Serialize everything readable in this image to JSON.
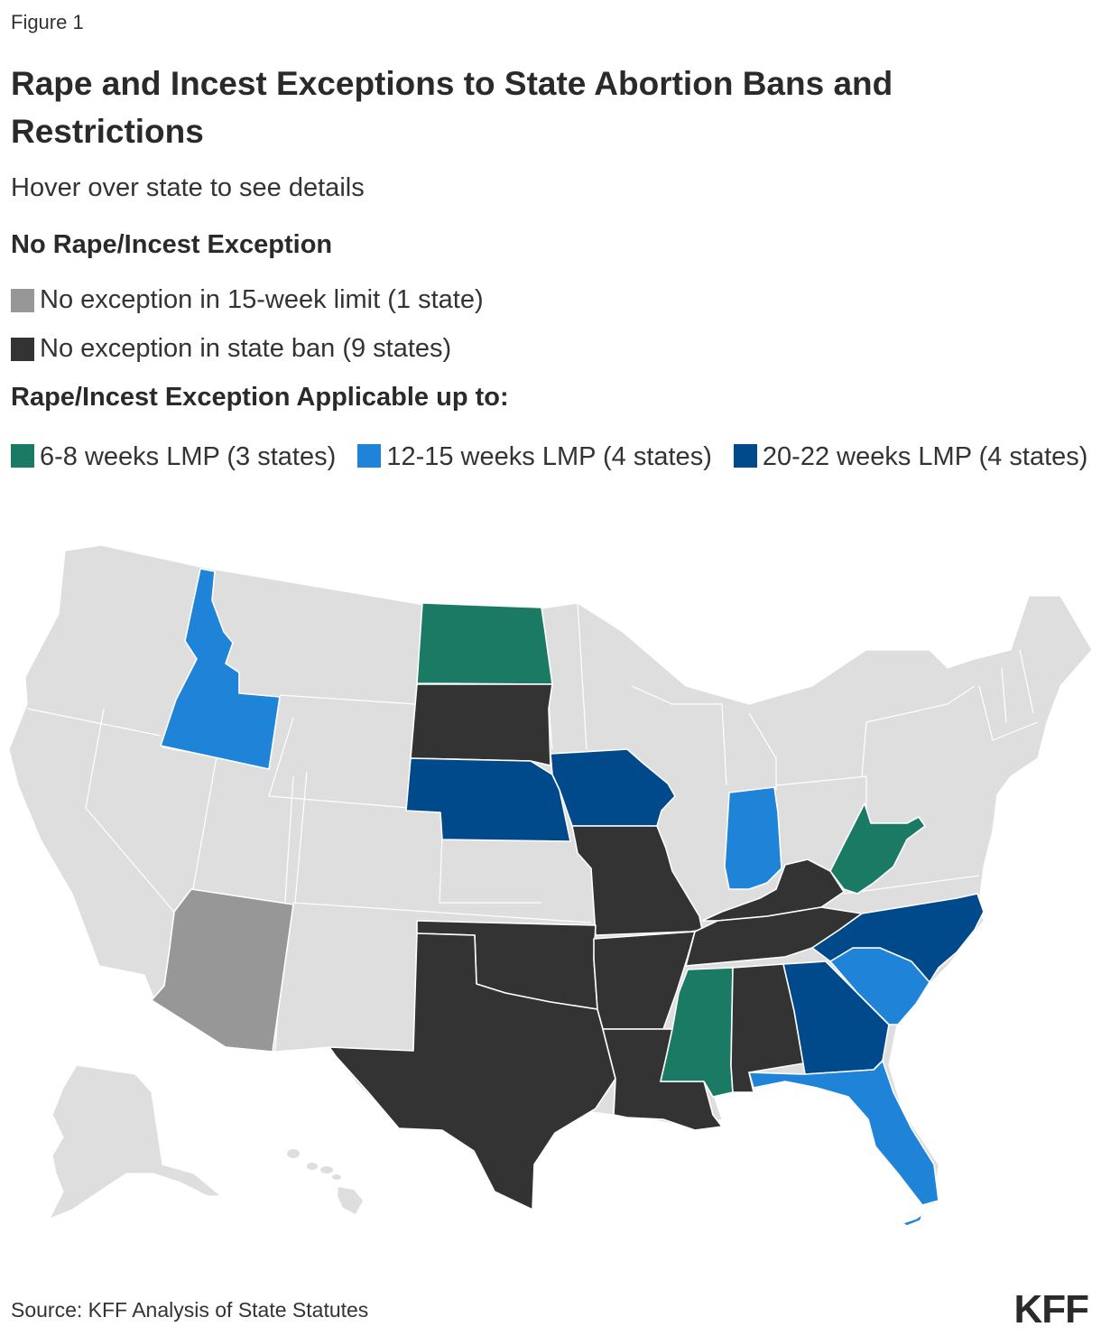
{
  "figure_label": "Figure 1",
  "title": "Rape and Incest Exceptions to State Abortion Bans and Restrictions",
  "subtitle": "Hover over state to see details",
  "legend": {
    "group1_heading": "No Rape/Incest Exception",
    "group1_items": [
      {
        "label": "No exception in 15-week limit (1 state)",
        "color": "#979797"
      },
      {
        "label": "No exception in state ban (9 states)",
        "color": "#333333"
      }
    ],
    "group2_heading": "Rape/Incest Exception Applicable up to:",
    "group2_items": [
      {
        "label": "6-8 weeks LMP (3 states)",
        "color": "#1a7a64"
      },
      {
        "label": "12-15 weeks LMP (4 states)",
        "color": "#1f83d8"
      },
      {
        "label": "20-22 weeks LMP (4 states)",
        "color": "#004a8b"
      }
    ]
  },
  "map": {
    "default_color": "#dedede",
    "states": {
      "AZ": "No exception in 15-week limit",
      "SD": "No exception in state ban",
      "MO": "No exception in state ban",
      "OK": "No exception in state ban",
      "TX": "No exception in state ban",
      "AR": "No exception in state ban",
      "LA": "No exception in state ban",
      "KY": "No exception in state ban",
      "TN": "No exception in state ban",
      "AL": "No exception in state ban",
      "ND": "6-8 weeks LMP",
      "WV": "6-8 weeks LMP",
      "MS": "6-8 weeks LMP",
      "ID": "12-15 weeks LMP",
      "IN": "12-15 weeks LMP",
      "SC": "12-15 weeks LMP",
      "FL": "12-15 weeks LMP",
      "NE": "20-22 weeks LMP",
      "IA": "20-22 weeks LMP",
      "NC": "20-22 weeks LMP",
      "GA": "20-22 weeks LMP"
    }
  },
  "source": "Source: KFF Analysis of State Statutes",
  "logo": "KFF"
}
